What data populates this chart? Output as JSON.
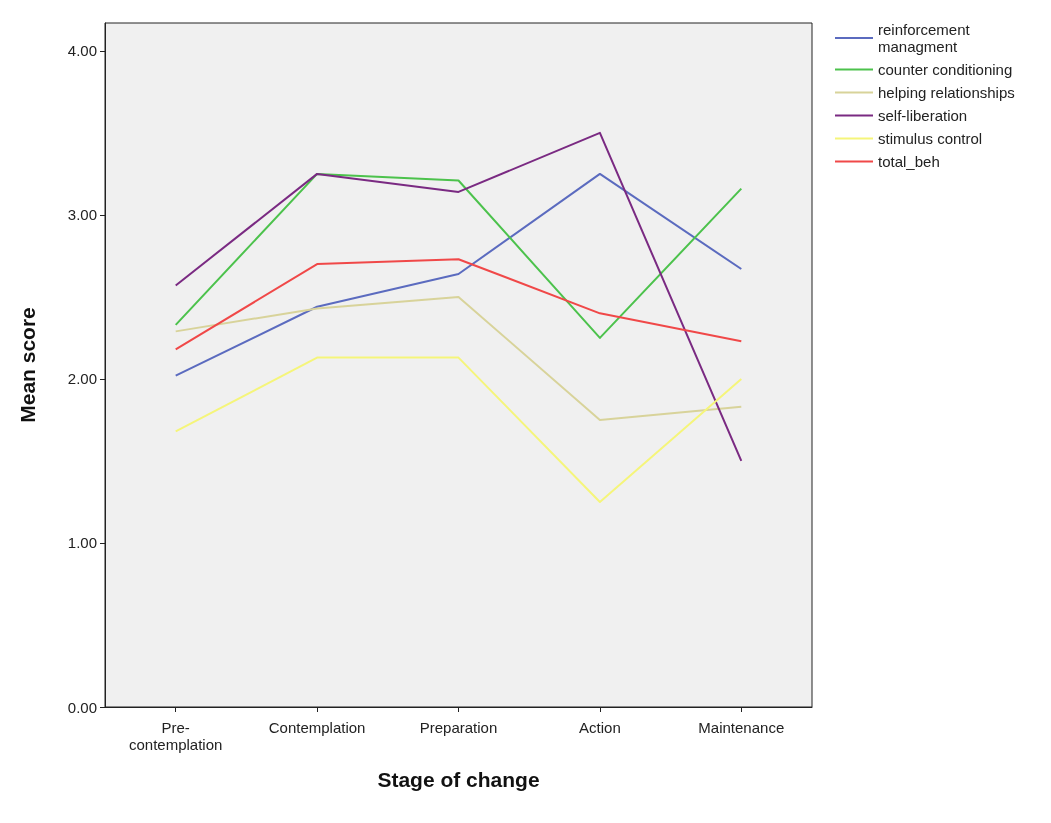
{
  "chart_data": {
    "type": "line",
    "xlabel": "Stage of change",
    "ylabel": "Mean score",
    "categories": [
      "Pre-contemplation",
      "Contemplation",
      "Preparation",
      "Action",
      "Maintenance"
    ],
    "series": [
      {
        "name": "reinforcement managment",
        "color": "#5b6bbf",
        "values": [
          2.02,
          2.44,
          2.64,
          3.25,
          2.67
        ]
      },
      {
        "name": "counter conditioning",
        "color": "#4cc24c",
        "values": [
          2.33,
          3.25,
          3.21,
          2.25,
          3.16
        ]
      },
      {
        "name": "helping relationships",
        "color": "#d8d39a",
        "values": [
          2.29,
          2.43,
          2.5,
          1.75,
          1.83
        ]
      },
      {
        "name": "self-liberation",
        "color": "#7a2a82",
        "values": [
          2.57,
          3.25,
          3.14,
          3.5,
          1.5
        ]
      },
      {
        "name": "stimulus control",
        "color": "#f5f57a",
        "values": [
          1.68,
          2.13,
          2.13,
          1.25,
          2.0
        ]
      },
      {
        "name": "total_beh",
        "color": "#f04848",
        "values": [
          2.18,
          2.7,
          2.73,
          2.4,
          2.23
        ]
      }
    ],
    "ylim": [
      0,
      4.17
    ],
    "yticks": [
      {
        "value": 0,
        "label": "0.00"
      },
      {
        "value": 1,
        "label": "1.00"
      },
      {
        "value": 2,
        "label": "2.00"
      },
      {
        "value": 3,
        "label": "3.00"
      },
      {
        "value": 4,
        "label": "4.00"
      }
    ],
    "grid": false,
    "legend": "right",
    "marker": "none",
    "line_style": "solid"
  }
}
